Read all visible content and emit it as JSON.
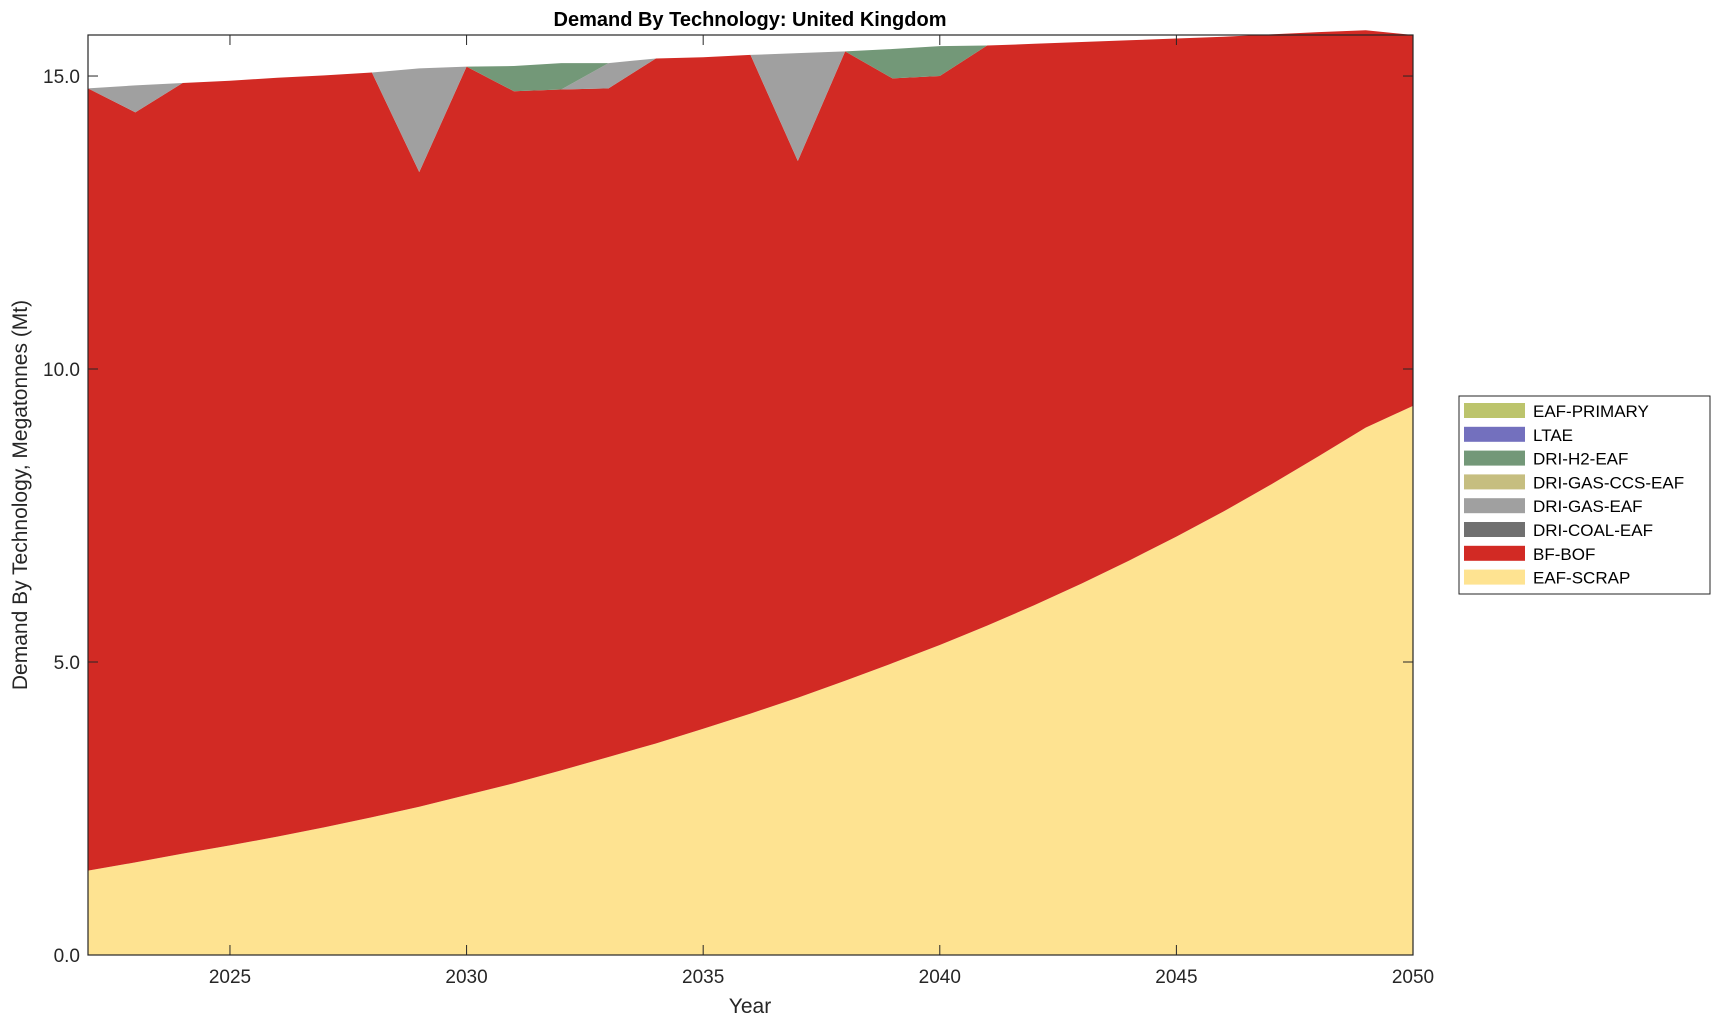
{
  "chart_data": {
    "type": "area",
    "stacked": true,
    "title": "Demand By Technology: United Kingdom",
    "xlabel": "Year",
    "ylabel": "Demand By Technology, Megatonnes (Mt)",
    "xlim": [
      2022,
      2050
    ],
    "ylim": [
      0,
      15.7
    ],
    "xticks": [
      2025,
      2030,
      2035,
      2040,
      2045,
      2050
    ],
    "xtick_labels": [
      "2025",
      "2030",
      "2035",
      "2040",
      "2045",
      "2050"
    ],
    "yticks": [
      0,
      5,
      10,
      15
    ],
    "ytick_labels": [
      "0.0",
      "5.0",
      "10.0",
      "15.0"
    ],
    "grid": false,
    "legend_position": "right",
    "x": [
      2022,
      2023,
      2024,
      2025,
      2026,
      2027,
      2028,
      2029,
      2030,
      2031,
      2032,
      2033,
      2034,
      2035,
      2036,
      2037,
      2038,
      2039,
      2040,
      2041,
      2042,
      2043,
      2044,
      2045,
      2046,
      2047,
      2048,
      2049,
      2050
    ],
    "series": [
      {
        "name": "EAF-SCRAP",
        "color": "#FEE391",
        "values": [
          1.44,
          1.58,
          1.73,
          1.87,
          2.02,
          2.18,
          2.35,
          2.53,
          2.73,
          2.93,
          3.15,
          3.38,
          3.61,
          3.86,
          4.12,
          4.39,
          4.68,
          4.98,
          5.29,
          5.62,
          5.97,
          6.34,
          6.73,
          7.14,
          7.57,
          8.03,
          8.51,
          9.0,
          9.37
        ]
      },
      {
        "name": "BF-BOF",
        "color": "#D22A24",
        "values": [
          13.35,
          12.8,
          13.15,
          13.05,
          12.95,
          12.83,
          12.71,
          10.83,
          12.43,
          11.81,
          11.62,
          11.41,
          11.69,
          11.46,
          11.24,
          9.16,
          10.74,
          9.98,
          9.71,
          9.9,
          9.58,
          9.24,
          8.88,
          8.5,
          8.1,
          7.68,
          7.24,
          6.78,
          6.33
        ]
      },
      {
        "name": "DRI-COAL-EAF",
        "color": "#707070",
        "values": [
          0,
          0,
          0,
          0,
          0,
          0,
          0,
          0,
          0,
          0,
          0,
          0,
          0,
          0,
          0,
          0,
          0,
          0,
          0,
          0,
          0,
          0,
          0,
          0,
          0,
          0,
          0,
          0,
          0
        ]
      },
      {
        "name": "DRI-GAS-EAF",
        "color": "#A0A0A0",
        "values": [
          0,
          0.46,
          0,
          0,
          0,
          0,
          0,
          1.77,
          0,
          0,
          0,
          0.43,
          0,
          0,
          0,
          1.84,
          0,
          0,
          0,
          0,
          0,
          0,
          0,
          0,
          0,
          0,
          0,
          0,
          0
        ]
      },
      {
        "name": "DRI-GAS-CCS-EAF",
        "color": "#C6BE80",
        "values": [
          0,
          0,
          0,
          0,
          0,
          0,
          0,
          0,
          0,
          0,
          0,
          0,
          0,
          0,
          0,
          0,
          0,
          0,
          0,
          0,
          0,
          0,
          0,
          0,
          0,
          0,
          0,
          0,
          0
        ]
      },
      {
        "name": "DRI-H2-EAF",
        "color": "#739878",
        "values": [
          0,
          0,
          0,
          0,
          0,
          0,
          0,
          0,
          0,
          0.43,
          0.45,
          0,
          0,
          0,
          0,
          0,
          0,
          0.5,
          0.51,
          0,
          0,
          0,
          0,
          0,
          0,
          0,
          0,
          0,
          0
        ]
      },
      {
        "name": "LTAE",
        "color": "#7370BE",
        "values": [
          0,
          0,
          0,
          0,
          0,
          0,
          0,
          0,
          0,
          0,
          0,
          0,
          0,
          0,
          0,
          0,
          0,
          0,
          0,
          0,
          0,
          0,
          0,
          0,
          0,
          0,
          0,
          0,
          0
        ]
      },
      {
        "name": "EAF-PRIMARY",
        "color": "#BCC46C",
        "values": [
          0,
          0,
          0,
          0,
          0,
          0,
          0,
          0,
          0,
          0,
          0,
          0,
          0,
          0,
          0,
          0,
          0,
          0,
          0,
          0,
          0,
          0,
          0,
          0,
          0,
          0,
          0,
          0,
          0
        ]
      }
    ]
  }
}
